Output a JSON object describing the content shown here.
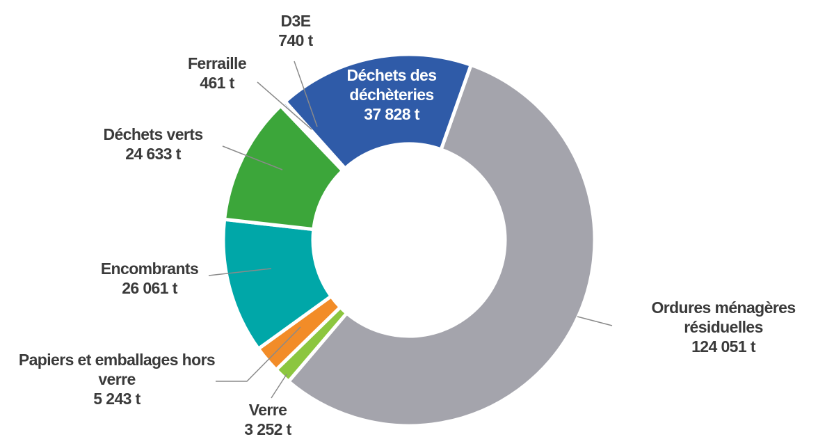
{
  "chart_data": {
    "type": "donut",
    "categories": [
      "Ordures ménagères résiduelles",
      "Verre",
      "Papiers et emballages hors verre",
      "Encombrants",
      "Déchets verts",
      "Ferraille",
      "D3E",
      "Déchets des déchèteries"
    ],
    "values": [
      124051,
      3252,
      5243,
      26061,
      24633,
      461,
      740,
      37828
    ],
    "value_labels": [
      "124 051 t",
      "3 252 t",
      "5 243 t",
      "26 061 t",
      "24 633 t",
      "461 t",
      "740 t",
      "37 828 t"
    ],
    "colors": [
      "#a4a4ac",
      "#8cc63f",
      "#f28c28",
      "#00a7a8",
      "#3ca63a",
      "#bfbfbf",
      "#7d9bd1",
      "#2f5ba8"
    ]
  }
}
